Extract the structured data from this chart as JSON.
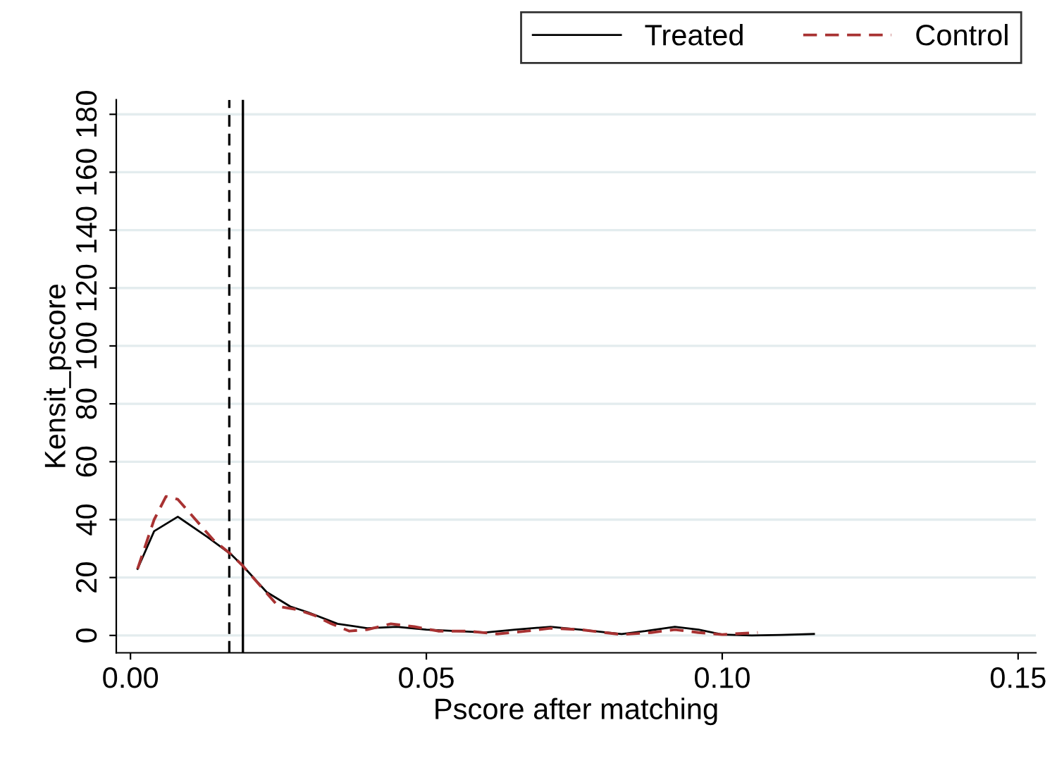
{
  "chart_data": {
    "type": "line",
    "xlabel": "Pscore after matching",
    "ylabel": "Kensit_pscore",
    "xlim": [
      -0.0024,
      0.153
    ],
    "ylim": [
      -6,
      185
    ],
    "xticks": [
      {
        "value": 0,
        "label": "0.00"
      },
      {
        "value": 0.05,
        "label": "0.05"
      },
      {
        "value": 0.1,
        "label": "0.10"
      },
      {
        "value": 0.15,
        "label": "0.15"
      }
    ],
    "yticks": [
      0,
      20,
      40,
      60,
      80,
      100,
      120,
      140,
      160,
      180
    ],
    "grid": "y",
    "legend": "top right",
    "series": [
      {
        "name": "Treated",
        "color": "#000000",
        "line_style": "solid",
        "x": [
          0.0012,
          0.004,
          0.008,
          0.013,
          0.017,
          0.019,
          0.023,
          0.027,
          0.03,
          0.035,
          0.04,
          0.045,
          0.05,
          0.055,
          0.06,
          0.065,
          0.071,
          0.076,
          0.083,
          0.087,
          0.092,
          0.096,
          0.1,
          0.105,
          0.11,
          0.1155
        ],
        "values": [
          23,
          36,
          41,
          34,
          28,
          24,
          15,
          10,
          8,
          4,
          2.5,
          3,
          2,
          1.5,
          1,
          2,
          3,
          2,
          0.5,
          1.5,
          3,
          2,
          0.3,
          0,
          0.2,
          0.5
        ]
      },
      {
        "name": "Control",
        "color": "#a83232",
        "line_style": "dashed",
        "x": [
          0.0012,
          0.004,
          0.006,
          0.008,
          0.011,
          0.014,
          0.017,
          0.019,
          0.022,
          0.025,
          0.028,
          0.031,
          0.034,
          0.037,
          0.04,
          0.044,
          0.048,
          0.052,
          0.057,
          0.062,
          0.067,
          0.071,
          0.076,
          0.083,
          0.088,
          0.092,
          0.096,
          0.1,
          0.106
        ],
        "values": [
          23,
          40,
          48,
          47,
          40,
          33,
          28,
          24,
          17,
          10,
          9,
          7,
          4,
          1.5,
          2,
          4,
          3,
          1.5,
          1.5,
          0.5,
          1.5,
          2.5,
          2,
          0.3,
          1,
          2,
          1,
          0.3,
          1
        ]
      }
    ],
    "ref_lines": [
      {
        "axis": "x",
        "value": 0.0167,
        "label": null,
        "color": "#000000",
        "line_style": "dashed"
      },
      {
        "axis": "x",
        "value": 0.019,
        "label": null,
        "color": "#000000",
        "line_style": "solid"
      }
    ]
  }
}
